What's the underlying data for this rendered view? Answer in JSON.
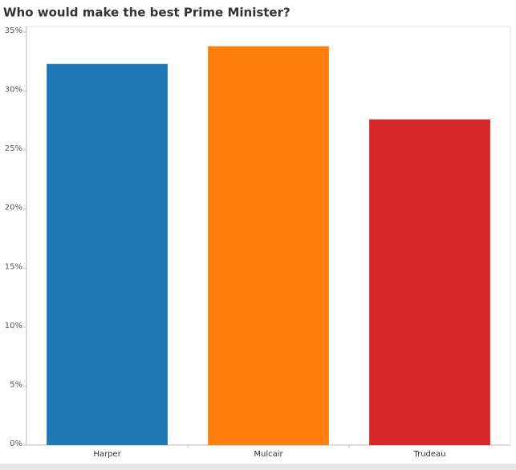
{
  "chart_data": {
    "type": "bar",
    "title": "Who would make the best Prime Minister?",
    "categories": [
      "Harper",
      "Mulcair",
      "Trudeau"
    ],
    "values": [
      32.3,
      33.8,
      27.6
    ],
    "colors": [
      "#1f77b4",
      "#ff7f0e",
      "#d62728"
    ],
    "ylim": [
      0,
      35
    ],
    "yticks": [
      {
        "value": 0,
        "label": "0%"
      },
      {
        "value": 5,
        "label": "5%"
      },
      {
        "value": 10,
        "label": "10%"
      },
      {
        "value": 15,
        "label": "15%"
      },
      {
        "value": 20,
        "label": "20%"
      },
      {
        "value": 25,
        "label": "25%"
      },
      {
        "value": 30,
        "label": "30%"
      },
      {
        "value": 35,
        "label": "35%"
      }
    ],
    "grid": false
  }
}
